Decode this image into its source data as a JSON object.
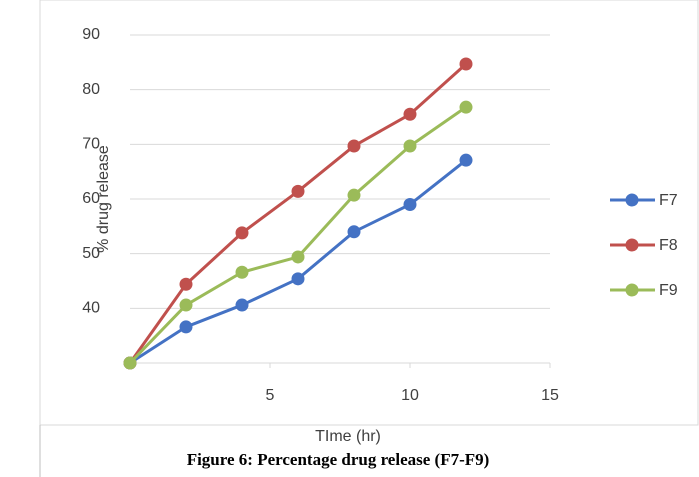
{
  "chart_data": {
    "type": "line",
    "caption": "Figure 6: Percentage drug release (F7-F9)",
    "x_label": "TIme (hr)",
    "y_label": "% drug release",
    "x": [
      0,
      2,
      4,
      6,
      8,
      10,
      12
    ],
    "series": [
      {
        "name": "F7",
        "color": "#4472c4",
        "values": [
          30,
          36.6,
          40.6,
          45.4,
          54,
          59,
          67.1
        ]
      },
      {
        "name": "F8",
        "color": "#c0504d",
        "values": [
          30,
          44.4,
          53.8,
          61.4,
          69.7,
          75.5,
          84.7
        ]
      },
      {
        "name": "F9",
        "color": "#9bbb59",
        "values": [
          30,
          40.6,
          46.6,
          49.4,
          60.7,
          69.7,
          76.8
        ]
      }
    ],
    "xlim": [
      0,
      15
    ],
    "xticks": [
      5,
      10,
      15
    ],
    "ylim": [
      30,
      90
    ],
    "yticks": [
      40,
      50,
      60,
      70,
      80,
      90
    ],
    "grid": true,
    "legend": "right"
  }
}
